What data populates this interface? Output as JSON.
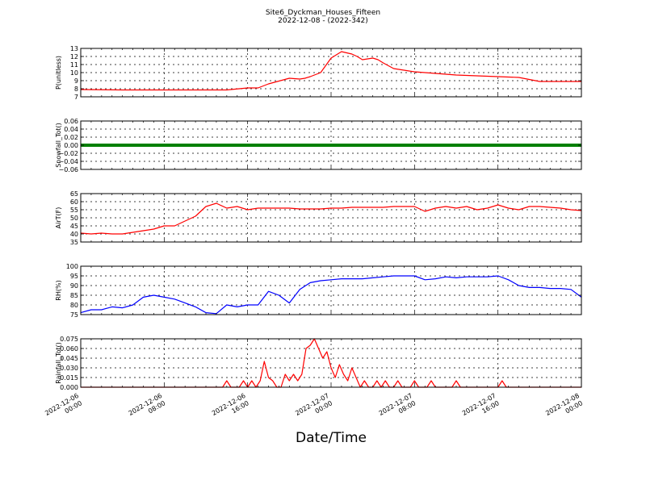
{
  "title": "Site6_Dyckman_Houses_Fifteen",
  "subtitle": "2022-12-08 - (2022-342)",
  "xlabel": "Date/Time",
  "x_ticks": [
    "2022-12-06\n00:00",
    "2022-12-06\n08:00",
    "2022-12-06\n16:00",
    "2022-12-07\n00:00",
    "2022-12-07\n08:00",
    "2022-12-07\n16:00",
    "2022-12-08\n00:00"
  ],
  "colors": {
    "red": "#ff0000",
    "green": "#008000",
    "blue": "#0000ff"
  },
  "chart_data": [
    {
      "type": "line",
      "ylabel": "P(unitless)",
      "ylim": [
        7,
        13
      ],
      "yticks": [
        "7",
        "8",
        "9",
        "10",
        "11",
        "12",
        "13"
      ],
      "grid": true,
      "color": "#ff0000",
      "x": [
        0,
        4,
        8,
        12,
        14,
        16,
        17,
        18,
        20,
        21,
        21.5,
        22,
        23,
        24,
        25,
        26,
        26.5,
        27,
        28,
        28.5,
        29,
        30,
        32,
        34,
        36,
        38,
        40,
        42,
        44,
        46,
        47,
        48
      ],
      "y": [
        7.9,
        7.85,
        7.85,
        7.85,
        7.85,
        8.1,
        8.1,
        8.6,
        9.3,
        9.2,
        9.3,
        9.5,
        10.0,
        11.8,
        12.6,
        12.3,
        12.0,
        11.6,
        11.8,
        11.6,
        11.2,
        10.5,
        10.1,
        9.9,
        9.7,
        9.6,
        9.5,
        9.4,
        8.9,
        8.9,
        8.9,
        8.9
      ]
    },
    {
      "type": "line",
      "ylabel": "Snowfall_Tot()",
      "ylim": [
        -0.06,
        0.06
      ],
      "yticks": [
        "−0.06",
        "−0.04",
        "−0.02",
        "0.00",
        "0.02",
        "0.04",
        "0.06"
      ],
      "grid": true,
      "color": "#008000",
      "x": [
        0,
        48
      ],
      "y": [
        0,
        0
      ]
    },
    {
      "type": "line",
      "ylabel": "AirT(F)",
      "ylim": [
        35,
        65
      ],
      "yticks": [
        "35",
        "40",
        "45",
        "50",
        "55",
        "60",
        "65"
      ],
      "grid": true,
      "color": "#ff0000",
      "x": [
        0,
        1,
        2,
        3,
        4,
        5,
        6,
        7,
        8,
        9,
        10,
        11,
        12,
        13,
        14,
        15,
        16,
        17,
        18,
        19,
        20,
        21,
        22,
        23,
        24,
        25,
        26,
        27,
        28,
        29,
        30,
        31,
        32,
        33,
        34,
        35,
        36,
        37,
        38,
        39,
        40,
        41,
        42,
        43,
        44,
        45,
        46,
        47,
        48
      ],
      "y": [
        40.5,
        40,
        40.5,
        40,
        40,
        41,
        42,
        43,
        45,
        45,
        48,
        51,
        57,
        59,
        56,
        57,
        55,
        56,
        56,
        56,
        56,
        55.5,
        55.5,
        55.5,
        56,
        56,
        56.5,
        56.5,
        56.5,
        56.5,
        57,
        57,
        57,
        54,
        56,
        57,
        56,
        57,
        55,
        56,
        58,
        56,
        55,
        57,
        57,
        56.5,
        56,
        55,
        54.5
      ]
    },
    {
      "type": "line",
      "ylabel": "RH(%)",
      "ylim": [
        75,
        100
      ],
      "yticks": [
        "75",
        "80",
        "85",
        "90",
        "95",
        "100"
      ],
      "grid": true,
      "color": "#0000ff",
      "x": [
        0,
        1,
        2,
        3,
        4,
        5,
        6,
        7,
        8,
        9,
        10,
        11,
        12,
        13,
        14,
        15,
        16,
        17,
        18,
        19,
        20,
        21,
        22,
        23,
        24,
        25,
        26,
        27,
        28,
        29,
        30,
        31,
        32,
        33,
        34,
        35,
        36,
        37,
        38,
        39,
        40,
        41,
        42,
        43,
        44,
        45,
        46,
        47,
        48
      ],
      "y": [
        76,
        77.5,
        77.5,
        79,
        78.5,
        80,
        84,
        85,
        84,
        83,
        81,
        79,
        76,
        75.5,
        80,
        79,
        80,
        80,
        87,
        85,
        81,
        88,
        91.5,
        92.5,
        93,
        93.5,
        93.5,
        93.5,
        94,
        94.5,
        95,
        95,
        95,
        93,
        93.5,
        94.5,
        94,
        94.5,
        94.5,
        94.5,
        95,
        93,
        90,
        89,
        89,
        88.5,
        88.5,
        88,
        84
      ]
    },
    {
      "type": "line",
      "ylabel": "Rainfall_Tot()",
      "ylim": [
        0,
        0.075
      ],
      "yticks": [
        "0.000",
        "0.015",
        "0.030",
        "0.045",
        "0.060",
        "0.075"
      ],
      "grid": true,
      "color": "#ff0000",
      "x": [
        0,
        13.6,
        14,
        14.4,
        15.2,
        15.6,
        16,
        16.4,
        16.8,
        17.2,
        17.6,
        18,
        18.4,
        18.8,
        19.2,
        19.6,
        20,
        20.4,
        20.8,
        21.2,
        21.6,
        22,
        22.4,
        22.8,
        23.2,
        23.6,
        24,
        24.4,
        24.8,
        25.2,
        25.6,
        26,
        26.4,
        26.8,
        27.2,
        27.6,
        28,
        28.4,
        28.8,
        29.2,
        29.6,
        30,
        30.4,
        30.8,
        31.2,
        31.6,
        32,
        32.4,
        32.8,
        33.2,
        33.6,
        34,
        34.4,
        34.8,
        35.2,
        35.6,
        36,
        36.4,
        36.8,
        37.2,
        37.6,
        38,
        38.4,
        38.8,
        39.2,
        39.6,
        40,
        40.4,
        40.8,
        41.2,
        41.6,
        42,
        48
      ],
      "y": [
        0,
        0,
        0.01,
        0,
        0,
        0.01,
        0,
        0.01,
        0,
        0.01,
        0.04,
        0.015,
        0.01,
        0,
        0,
        0.02,
        0.01,
        0.02,
        0.01,
        0.02,
        0.06,
        0.065,
        0.075,
        0.06,
        0.045,
        0.055,
        0.03,
        0.015,
        0.035,
        0.02,
        0.01,
        0.03,
        0.015,
        0,
        0.01,
        0,
        0,
        0.01,
        0,
        0.01,
        0,
        0,
        0.01,
        0,
        0,
        0,
        0.01,
        0,
        0,
        0,
        0.01,
        0,
        0,
        0,
        0,
        0,
        0.01,
        0,
        0,
        0,
        0,
        0,
        0,
        0,
        0,
        0,
        0,
        0.01,
        0,
        0,
        0,
        0,
        0
      ]
    }
  ]
}
